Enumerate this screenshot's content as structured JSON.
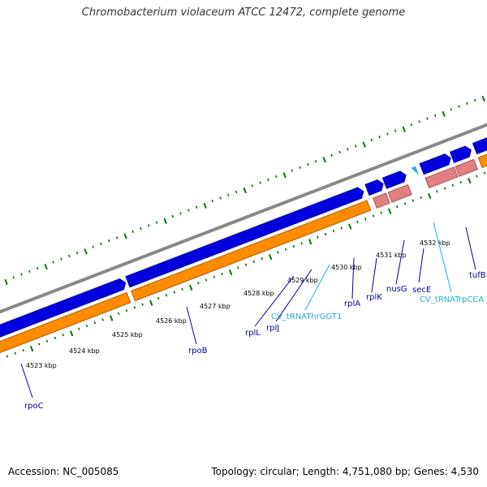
{
  "title": "Chromobacterium violaceum ATCC 12472, complete genome",
  "footer": {
    "accession": "Accession: NC_005085",
    "topology": "Topology: circular; Length: 4,751,080 bp; Genes: 4,530"
  },
  "colors": {
    "backbone": "#888888",
    "forward_cds": "#0000dd",
    "forward_cds_shade": "#0000aa",
    "orange_track": "#ff8c00",
    "orange_shade": "#b05a00",
    "pink_track": "#e08080",
    "pink_shade": "#b05050",
    "green_feature": "#99dd33",
    "tick": "#007700",
    "gene_label": "#000099",
    "trna_label": "#22aadd"
  },
  "kbp_labels": [
    "4523 kbp",
    "4524 kbp",
    "4525 kbp",
    "4526 kbp",
    "4527 kbp",
    "4528 kbp",
    "4529 kbp",
    "4530 kbp",
    "4531 kbp",
    "4532 kbp"
  ],
  "gene_labels": {
    "rpoC": "rpoC",
    "rpoB": "rpoB",
    "rplL": "rplL",
    "rplJ": "rplJ",
    "trna_thr": "CV_tRNAThrGGT1",
    "rplA": "rplA",
    "rplK": "rplK",
    "nusG": "nusG",
    "secE": "secE",
    "trna_trp": "CV_tRNATrpCCA",
    "tufB": "tufB"
  }
}
